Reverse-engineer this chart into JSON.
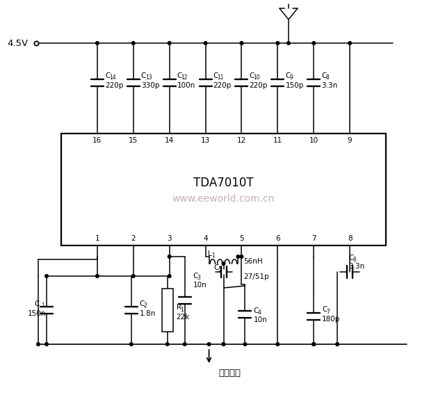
{
  "bg_color": "#ffffff",
  "ic_label": "TDA7010T",
  "watermark": "www.eeworld.com.cn",
  "watermark_color": "#c8b0b0",
  "voltage_label": "4.5V",
  "output_label": "音频输出",
  "top_caps": [
    {
      "idx": 0,
      "name": "C",
      "sub": "14",
      "val": "220p"
    },
    {
      "idx": 1,
      "name": "C",
      "sub": "13",
      "val": "330p"
    },
    {
      "idx": 2,
      "name": "C",
      "sub": "12",
      "val": "100n"
    },
    {
      "idx": 3,
      "name": "C",
      "sub": "11",
      "val": "220p"
    },
    {
      "idx": 4,
      "name": "C",
      "sub": "10",
      "val": "220p"
    },
    {
      "idx": 5,
      "name": "C",
      "sub": "9",
      "val": "150p"
    },
    {
      "idx": 6,
      "name": "C",
      "sub": "8",
      "val": "3.3n"
    }
  ]
}
